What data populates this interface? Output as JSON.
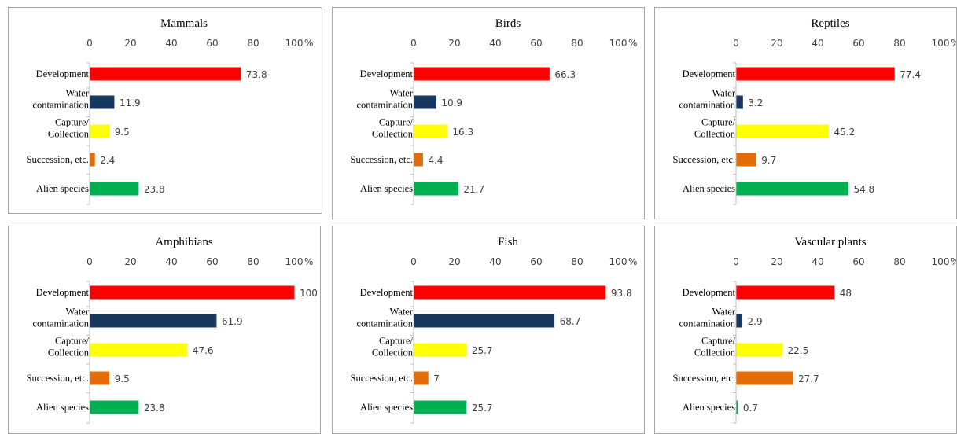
{
  "chart_data": [
    {
      "type": "bar",
      "orientation": "horizontal",
      "title": "Mammals",
      "axis_unit": "%",
      "xlim": [
        0,
        100
      ],
      "ticks": [
        0,
        20,
        40,
        60,
        80,
        100
      ],
      "categories": [
        [
          "Development"
        ],
        [
          "Water",
          "contamination"
        ],
        [
          "Capture/",
          "Collection"
        ],
        [
          "Succession, etc."
        ],
        [
          "Alien species"
        ]
      ],
      "values": [
        73.8,
        11.9,
        9.5,
        2.4,
        23.8
      ],
      "value_labels": [
        "73.8",
        "11.9",
        "9.5",
        "2.4",
        "23.8"
      ]
    },
    {
      "type": "bar",
      "orientation": "horizontal",
      "title": "Birds",
      "axis_unit": "%",
      "xlim": [
        0,
        100
      ],
      "ticks": [
        0,
        20,
        40,
        60,
        80,
        100
      ],
      "categories": [
        [
          "Development"
        ],
        [
          "Water",
          "contamination"
        ],
        [
          "Capture/",
          "Collection"
        ],
        [
          "Succession, etc."
        ],
        [
          "Alien species"
        ]
      ],
      "values": [
        66.3,
        10.9,
        16.3,
        4.4,
        21.7
      ],
      "value_labels": [
        "66.3",
        "10.9",
        "16.3",
        "4.4",
        "21.7"
      ]
    },
    {
      "type": "bar",
      "orientation": "horizontal",
      "title": "Reptiles",
      "axis_unit": "%",
      "xlim": [
        0,
        100
      ],
      "ticks": [
        0,
        20,
        40,
        60,
        80,
        100
      ],
      "categories": [
        [
          "Development"
        ],
        [
          "Water",
          "contamination"
        ],
        [
          "Capture/",
          "Collection"
        ],
        [
          "Succession, etc."
        ],
        [
          "Alien species"
        ]
      ],
      "values": [
        77.4,
        3.2,
        45.2,
        9.7,
        54.8
      ],
      "value_labels": [
        "77.4",
        "3.2",
        "45.2",
        "9.7",
        "54.8"
      ]
    },
    {
      "type": "bar",
      "orientation": "horizontal",
      "title": "Amphibians",
      "axis_unit": "%",
      "xlim": [
        0,
        100
      ],
      "ticks": [
        0,
        20,
        40,
        60,
        80,
        100
      ],
      "categories": [
        [
          "Development"
        ],
        [
          "Water",
          "contamination"
        ],
        [
          "Capture/",
          "Collection"
        ],
        [
          "Succession, etc."
        ],
        [
          "Alien species"
        ]
      ],
      "values": [
        100,
        61.9,
        47.6,
        9.5,
        23.8
      ],
      "value_labels": [
        "100",
        "61.9",
        "47.6",
        "9.5",
        "23.8"
      ]
    },
    {
      "type": "bar",
      "orientation": "horizontal",
      "title": "Fish",
      "axis_unit": "%",
      "xlim": [
        0,
        100
      ],
      "ticks": [
        0,
        20,
        40,
        60,
        80,
        100
      ],
      "categories": [
        [
          "Development"
        ],
        [
          "Water",
          "contamination"
        ],
        [
          "Capture/",
          "Collection"
        ],
        [
          "Succession, etc."
        ],
        [
          "Alien species"
        ]
      ],
      "values": [
        93.8,
        68.7,
        25.7,
        7,
        25.7
      ],
      "value_labels": [
        "93.8",
        "68.7",
        "25.7",
        "7",
        "25.7"
      ]
    },
    {
      "type": "bar",
      "orientation": "horizontal",
      "title": "Vascular plants",
      "axis_unit": "%",
      "xlim": [
        0,
        100
      ],
      "ticks": [
        0,
        20,
        40,
        60,
        80,
        100
      ],
      "categories": [
        [
          "Development"
        ],
        [
          "Water",
          "contamination"
        ],
        [
          "Capture/",
          "Collection"
        ],
        [
          "Succession, etc."
        ],
        [
          "Alien species"
        ]
      ],
      "values": [
        48,
        2.9,
        22.5,
        27.7,
        0.7
      ],
      "value_labels": [
        "48",
        "2.9",
        "22.5",
        "27.7",
        "0.7"
      ]
    }
  ],
  "colors": {
    "bars": [
      "#ff0000",
      "#17375e",
      "#ffff00",
      "#e36c09",
      "#00b050"
    ],
    "axis": "#bfbfbf",
    "border": "#a6a6a6"
  }
}
